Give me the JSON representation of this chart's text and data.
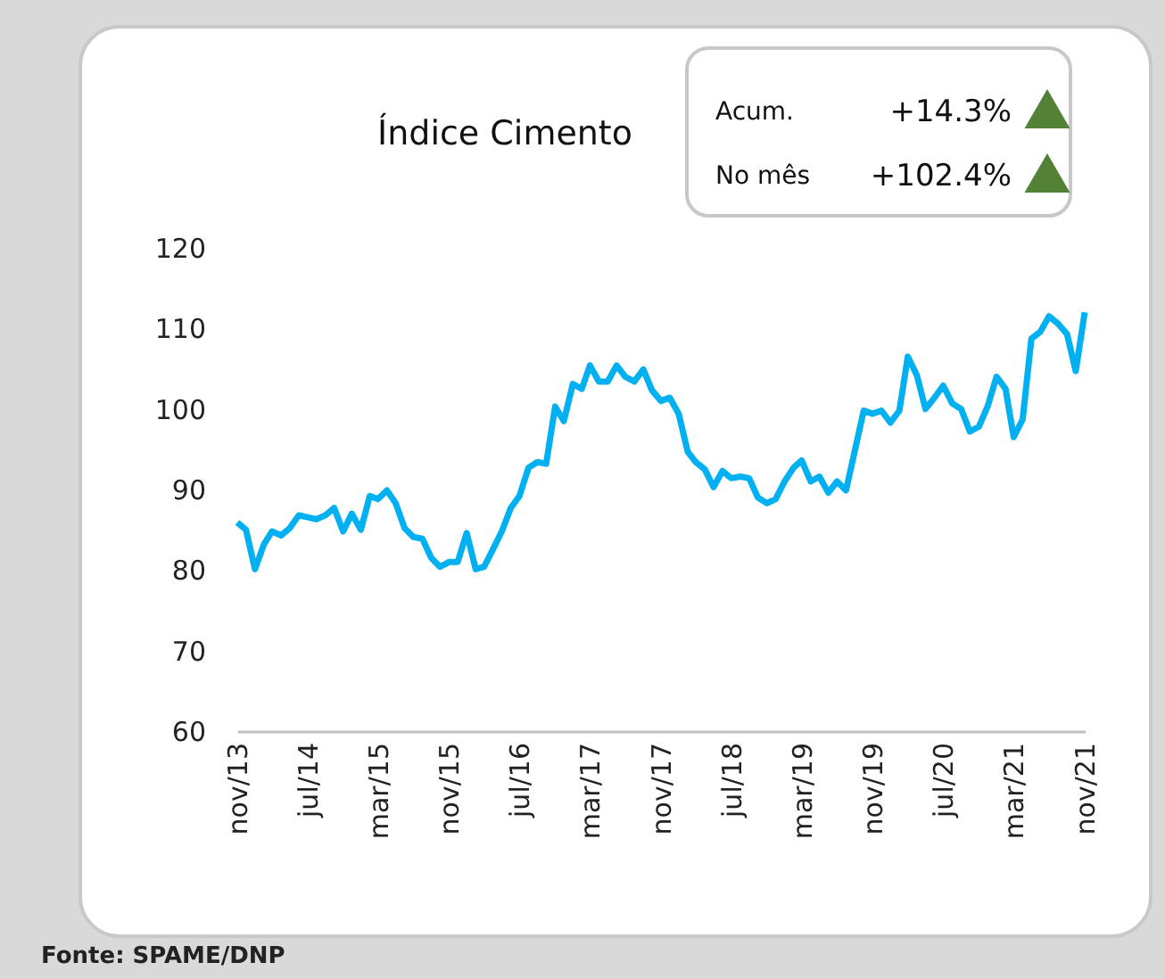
{
  "chart_data": {
    "type": "line",
    "title": "Índice Cimento",
    "x": [
      "2013-11",
      "2013-12",
      "2014-01",
      "2014-02",
      "2014-03",
      "2014-04",
      "2014-05",
      "2014-06",
      "2014-08",
      "2014-09",
      "2014-10",
      "2014-11",
      "2014-12",
      "2015-01",
      "2015-02",
      "2015-03",
      "2015-04",
      "2015-05",
      "2015-06",
      "2015-07",
      "2015-08",
      "2015-09",
      "2015-10",
      "2015-11",
      "2015-12",
      "2016-01",
      "2016-02",
      "2016-03",
      "2016-04",
      "2016-05",
      "2016-06",
      "2016-07",
      "2016-08",
      "2016-09",
      "2016-10",
      "2016-11",
      "2016-12",
      "2017-01",
      "2017-02",
      "2017-03",
      "2017-04",
      "2017-05",
      "2017-06",
      "2017-07",
      "2017-08",
      "2017-09",
      "2017-10",
      "2017-11",
      "2017-12",
      "2018-01",
      "2018-02",
      "2018-03",
      "2018-04",
      "2018-05",
      "2018-06",
      "2018-07",
      "2018-08",
      "2018-09",
      "2018-10",
      "2018-11",
      "2018-12",
      "2019-01",
      "2019-02",
      "2019-03",
      "2019-04",
      "2019-05",
      "2019-06",
      "2019-07",
      "2019-08",
      "2019-10",
      "2019-11",
      "2019-12",
      "2020-01",
      "2020-02",
      "2020-03",
      "2020-04",
      "2020-05",
      "2020-06",
      "2020-07",
      "2020-08",
      "2020-09",
      "2020-10",
      "2020-11",
      "2020-12",
      "2021-01",
      "2021-02",
      "2021-03",
      "2021-04",
      "2021-05",
      "2021-06",
      "2021-07",
      "2021-08",
      "2021-09",
      "2021-10",
      "2021-11"
    ],
    "series": [
      {
        "color": "#00b0f0",
        "values": [
          85.9,
          85,
          80.1,
          83.2,
          84.8,
          84.3,
          85.2,
          86.8,
          86.3,
          86.8,
          87.7,
          84.8,
          87,
          85,
          89.2,
          88.8,
          89.9,
          88.3,
          85.2,
          84.1,
          83.9,
          81.5,
          80.4,
          81,
          81,
          84.6,
          80.1,
          80.4,
          82.6,
          84.8,
          87.7,
          89.2,
          92.7,
          93.4,
          93.2,
          100.3,
          98.5,
          103.1,
          102.5,
          105.4,
          103.4,
          103.4,
          105.4,
          104,
          103.4,
          104.9,
          102.3,
          101,
          101.4,
          99.4,
          94.7,
          93.4,
          92.5,
          90.3,
          92.3,
          91.4,
          91.6,
          91.4,
          89,
          88.3,
          88.8,
          91,
          92.7,
          93.6,
          91,
          91.6,
          89.6,
          91,
          89.9,
          99.8,
          99.4,
          99.8,
          98.3,
          99.8,
          106.5,
          104.2,
          100,
          101.4,
          102.9,
          100.7,
          100,
          97.2,
          97.8,
          100.3,
          104,
          102.5,
          96.5,
          98.7,
          108.7,
          109.6,
          111.5,
          110.6,
          109.3,
          104.7,
          112
        ]
      }
    ],
    "xlim": [
      "2013-11",
      "2021-11"
    ],
    "xticks": [
      {
        "value": "2013-11",
        "label": "nov/13"
      },
      {
        "value": "2014-07",
        "label": "jul/14"
      },
      {
        "value": "2015-03",
        "label": "mar/15"
      },
      {
        "value": "2015-11",
        "label": "nov/15"
      },
      {
        "value": "2016-07",
        "label": "jul/16"
      },
      {
        "value": "2017-03",
        "label": "mar/17"
      },
      {
        "value": "2017-11",
        "label": "nov/17"
      },
      {
        "value": "2018-07",
        "label": "jul/18"
      },
      {
        "value": "2019-03",
        "label": "mar/19"
      },
      {
        "value": "2019-11",
        "label": "nov/19"
      },
      {
        "value": "2020-07",
        "label": "jul/20"
      },
      {
        "value": "2021-03",
        "label": "mar/21"
      },
      {
        "value": "2021-11",
        "label": "nov/21"
      }
    ],
    "ylim": [
      60,
      120
    ],
    "yticks": [
      60,
      70,
      80,
      90,
      100,
      110,
      120
    ],
    "grid": false,
    "marker": "none",
    "line_style": "solid",
    "annotations": [
      "Acum.",
      "+14.3%",
      "No mês",
      "+102.4%",
      "Fonte: SPAME/DNP"
    ]
  }
}
